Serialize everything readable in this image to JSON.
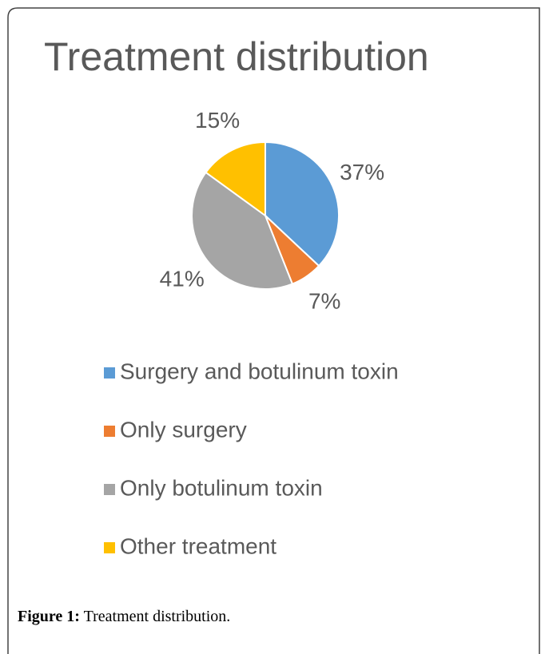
{
  "chart_data": {
    "type": "pie",
    "title": "Treatment distribution",
    "categories": [
      "Surgery and botulinum toxin",
      "Only surgery",
      "Only botulinum toxin",
      "Other treatment"
    ],
    "values": [
      37,
      7,
      41,
      15
    ],
    "value_labels": [
      "37%",
      "7%",
      "41%",
      "15%"
    ],
    "colors": [
      "#5b9bd5",
      "#ed7d31",
      "#a5a5a5",
      "#ffc000"
    ],
    "legend": "bottom"
  },
  "caption": {
    "label": "Figure 1:",
    "text": "Treatment distribution."
  }
}
